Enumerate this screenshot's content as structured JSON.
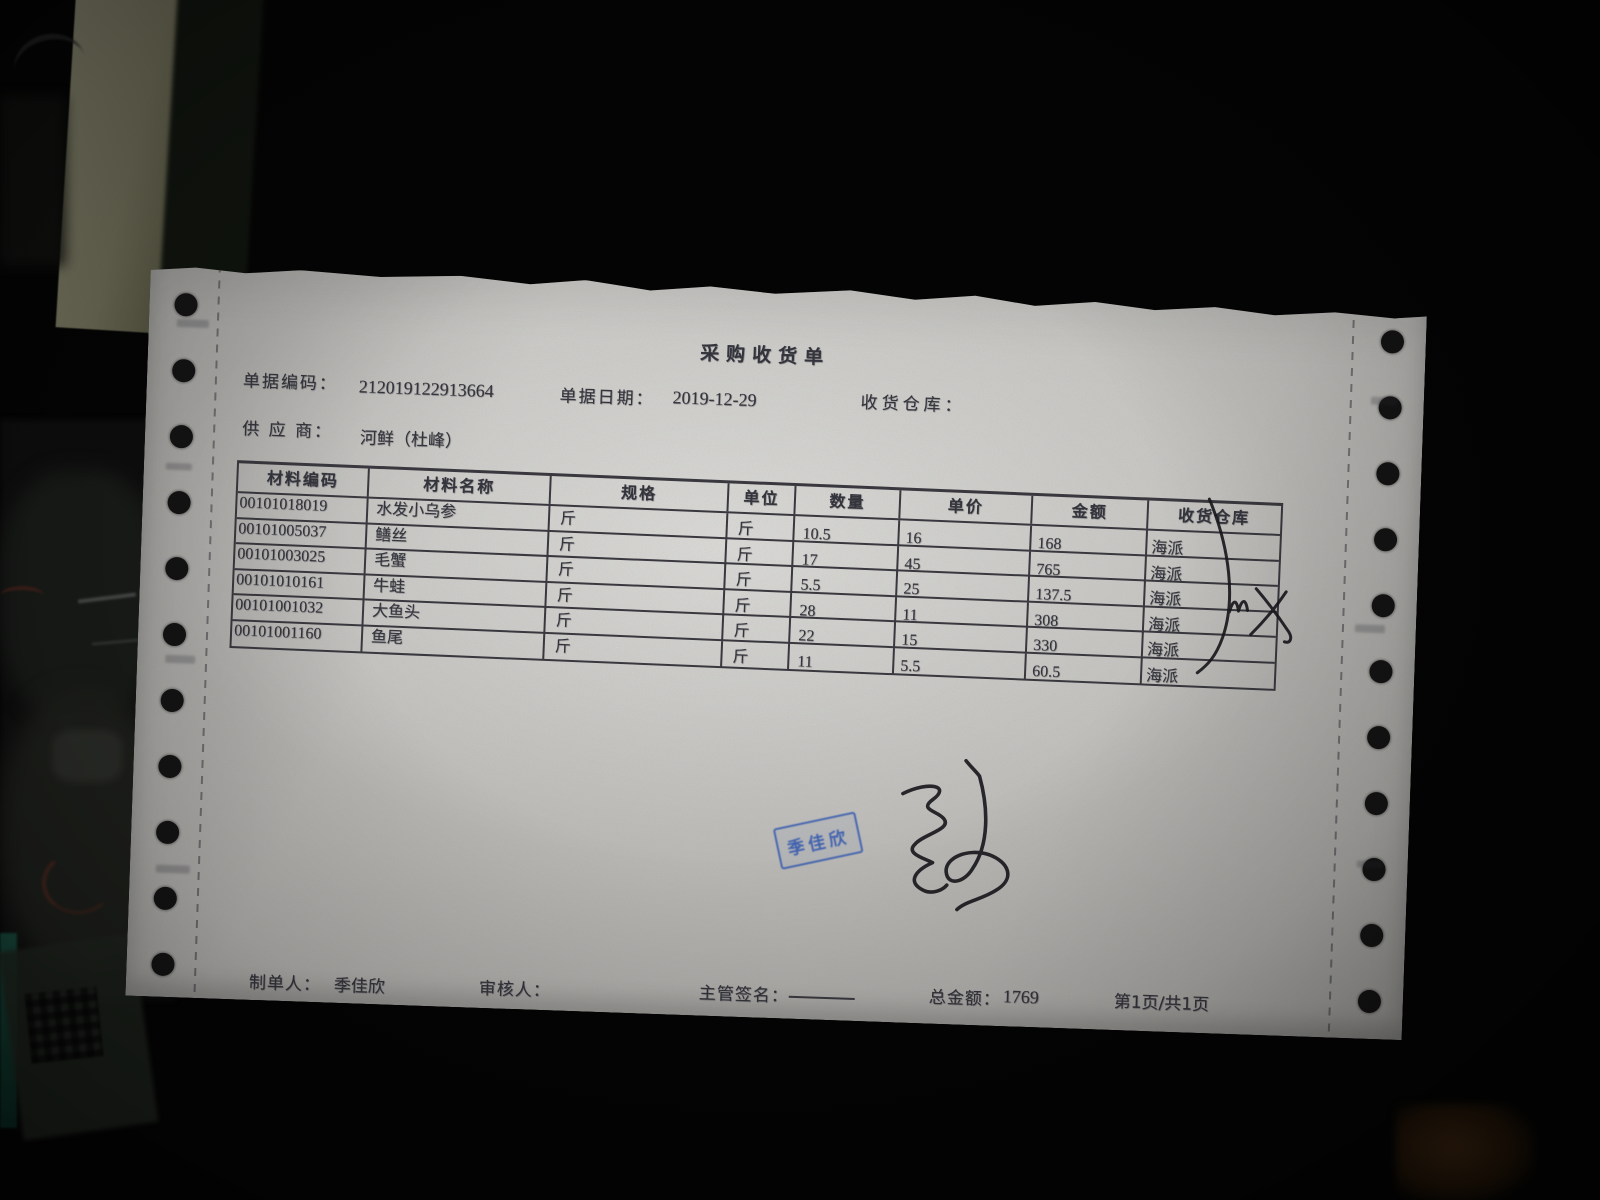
{
  "colors": {
    "stamp_blue": "#2f55ae",
    "ink_black": "#17171c",
    "paper_gray": "#c6c5c1",
    "print_gray": "#34343c"
  },
  "doc": {
    "title": "采购收货单",
    "doc_no_label": "单据编码：",
    "doc_no": "212019122913664",
    "date_label": "单据日期：",
    "date": "2019-12-29",
    "warehouse_label": "收货仓库：",
    "supplier_label": "供 应 商：",
    "supplier": "河鲜（杜峰）",
    "table": {
      "headers": [
        "材料编码",
        "材料名称",
        "规格",
        "单位",
        "数量",
        "单价",
        "金额",
        "收货仓库"
      ],
      "rows": [
        [
          "00101018019",
          "水发小乌参",
          "斤",
          "斤",
          "10.5",
          "16",
          "168",
          "海派"
        ],
        [
          "00101005037",
          "鳝丝",
          "斤",
          "斤",
          "17",
          "45",
          "765",
          "海派"
        ],
        [
          "00101003025",
          "毛蟹",
          "斤",
          "斤",
          "5.5",
          "25",
          "137.5",
          "海派"
        ],
        [
          "00101010161",
          "牛蛙",
          "斤",
          "斤",
          "28",
          "11",
          "308",
          "海派"
        ],
        [
          "00101001032",
          "大鱼头",
          "斤",
          "斤",
          "22",
          "15",
          "330",
          "海派"
        ],
        [
          "00101001160",
          "鱼尾",
          "斤",
          "斤",
          "11",
          "5.5",
          "60.5",
          "海派"
        ]
      ]
    },
    "footer": {
      "preparer_label": "制单人：",
      "preparer": "季佳欣",
      "reviewer_label": "审核人：",
      "sign_label": "主管签名：",
      "total_label": "总金额：",
      "total": "1769",
      "page": "第1页/共1页"
    },
    "stamp_text": "季佳欣"
  }
}
